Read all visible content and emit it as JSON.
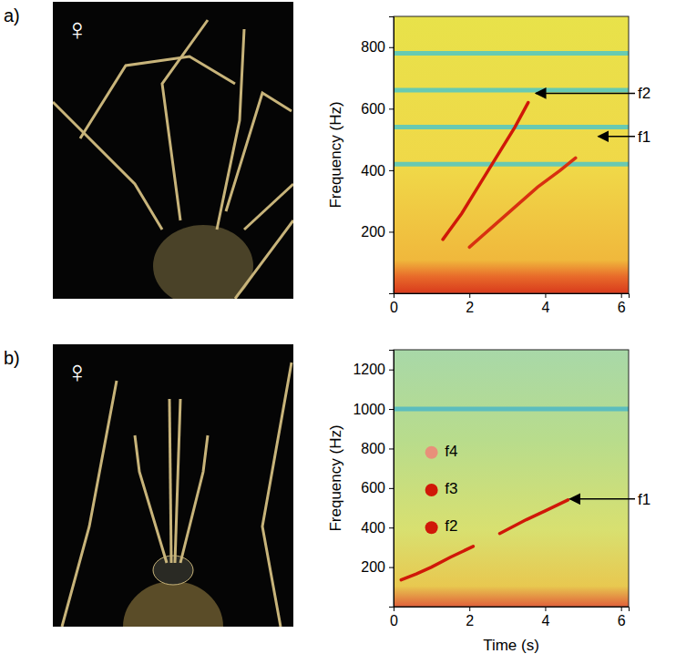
{
  "photos": [
    {
      "symbol": "♀"
    },
    {
      "symbol": "♀"
    }
  ],
  "chart_data": [
    {
      "type": "line",
      "title": "a)",
      "y_label": "Frequency (Hz)",
      "xlim": [
        0,
        6.2
      ],
      "xticks": [
        0,
        2,
        4,
        6
      ],
      "ylim": [
        0,
        900
      ],
      "yticks": [
        200,
        400,
        600,
        800
      ],
      "series": [
        {
          "type": "hline",
          "color": "#3cc4d4",
          "values": [
            420,
            540,
            660,
            780
          ]
        },
        {
          "type": "line",
          "color": "#d01808",
          "x": [
            1.3,
            1.8,
            2.3,
            2.8,
            3.2,
            3.55
          ],
          "values": [
            175,
            260,
            360,
            460,
            540,
            620
          ]
        },
        {
          "type": "line",
          "color": "#d83010",
          "x": [
            2.0,
            2.6,
            3.2,
            3.8,
            4.4,
            4.8
          ],
          "values": [
            150,
            215,
            280,
            345,
            400,
            440
          ]
        }
      ],
      "arrows": [
        {
          "text": "f2",
          "x": 3.75,
          "y": 650
        },
        {
          "text": "f1",
          "x": 5.4,
          "y": 510
        }
      ]
    },
    {
      "type": "line",
      "title": "b)",
      "x_label": "Time (s)",
      "y_label": "Frequency (Hz)",
      "xlim": [
        0,
        6.2
      ],
      "xticks": [
        0,
        2,
        4,
        6
      ],
      "ylim": [
        0,
        1300
      ],
      "yticks": [
        200,
        400,
        600,
        800,
        1000,
        1200
      ],
      "series": [
        {
          "type": "hline",
          "color": "#40b4cc",
          "values": [
            1000
          ]
        },
        {
          "type": "line",
          "color": "#d01808",
          "x": [
            0.2,
            0.6,
            1.0,
            1.5,
            2.1,
            2.5,
            2.8,
            3.5,
            4.0,
            4.6
          ],
          "values": [
            135,
            165,
            200,
            250,
            305,
            null,
            370,
            440,
            485,
            540
          ]
        },
        {
          "type": "scatter",
          "marker": "circle",
          "color": "#d01808",
          "x": [
            1.0,
            1.0
          ],
          "values": [
            400,
            590
          ]
        },
        {
          "type": "scatter",
          "marker": "circle",
          "color": "#e8907a",
          "x": [
            1.0
          ],
          "values": [
            780
          ]
        }
      ],
      "annotations": [
        {
          "text": "f4",
          "x": 1.35,
          "y": 790
        },
        {
          "text": "f3",
          "x": 1.35,
          "y": 600
        },
        {
          "text": "f2",
          "x": 1.35,
          "y": 410
        }
      ],
      "arrows": [
        {
          "text": "f1",
          "x": 4.65,
          "y": 545
        }
      ]
    }
  ]
}
